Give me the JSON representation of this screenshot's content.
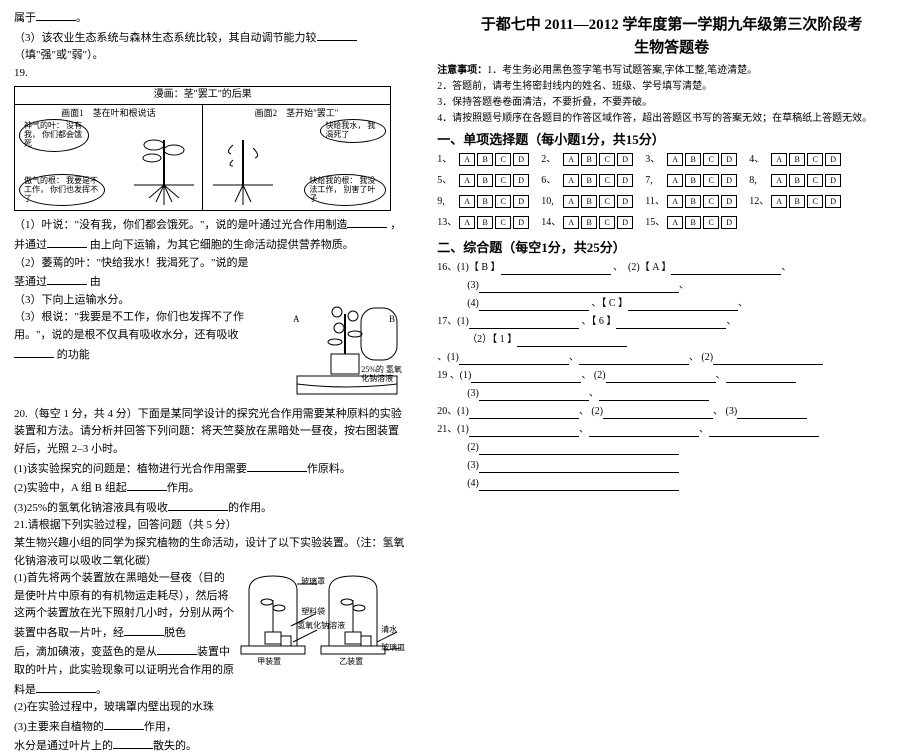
{
  "left": {
    "line_belong": "属于",
    "q3": "（3）该农业生态系统与森林生态系统比较，其自动调节能力较",
    "q3_hint": "（填\"强\"或\"弱\"）。",
    "q19_num": "19.",
    "comic_header": "漫画：茎\"罢工\"的后果",
    "panel1_title": "画面1　茎在叶和根说话",
    "panel2_title": "画面2　茎开始\"罢工\"",
    "bubble_leaf1": "神气的叶：\n没有我，\n你们都会饿死",
    "bubble_root1": "傲气的根：\n我要是不工作，\n你们也发挥不了",
    "bubble_leaf2": "快给我水，\n我渴死了",
    "bubble_root2": "快给我的根：\n我没法工作，\n别害了叶子",
    "p_leaf": "（1）叶说：\"没有我，你们都会饿死。\"，说的是叶通过光合作用制造",
    "p_leaf2": "，并通过",
    "p_leaf3": "由上向下运输，为其它细胞的生命活动提供营养物质。",
    "p_stem1": "（2）萎蔫的叶：\"快给我水！我渴死了。\"说的是",
    "p_stem2": "茎通过",
    "p_stem2b": "由",
    "p_stem3": "（3）下向上运输水分。",
    "p_root1": "（3）根说：\"我要是不工作，你们也发挥不了作用。\"，说的是根不仅具有吸收水分，还有吸收",
    "p_root2": "的功能",
    "q20": "20.（每空 1 分，共 4 分）下面是某同学设计的探究光合作用需要某种原料的实验装置和方法。请分析并回答下列问题：将天竺葵放在黑暗处一昼夜，按右图装置好后，光照 2–3 小时。",
    "flower_label": "25%的\n氢氧化钠溶液",
    "q20_1a": "(1)该实验探究的问题是：植物进行光合作用需要",
    "q20_1b": "作原料。",
    "q20_2": "(2)实验中，A 组 B 组起",
    "q20_2b": "作用。",
    "q20_3": "(3)25%的氢氧化钠溶液具有吸收",
    "q20_3b": "的作用。",
    "q21_head": "21.请根据下列实验过程，回答问题（共 5 分）",
    "q21_body1": "某生物兴趣小组的同学为探究植物的生命活动，设计了以下实验装置。（注：氢氧化钠溶液可以吸收二氧化碳）",
    "q21_body2": "(1)首先将两个装置放在黑暗处一昼夜（目的是使叶片中原有的有机物运走耗尽），然后将这两个装置放在光下照射几小时，分别从两个装置中各取一片叶，经",
    "q21_body2b": "脱色",
    "q21_body3": "后，滴加碘液，变蓝色的是从",
    "q21_body3b": "装置中取的叶片，此实验现象可以证明光合作用的原料是",
    "q21_body4": "(2)在实验过程中，玻璃罩内壁出现的水珠",
    "q21_body5": "(3)主要来自植物的",
    "q21_body5b": "作用，",
    "q21_body6": "水分是通过叶片上的",
    "q21_body6b": "散失的。",
    "jar_label_top": "玻璃罩",
    "jar_label_bag": "塑料袋",
    "jar_label_naoh": "氢氧化钠溶液",
    "jar_label_a": "甲装置",
    "jar_label_b": "乙装置",
    "jar_label_water": "清水",
    "jar_label_dish": "玻璃皿"
  },
  "right": {
    "title1": "于都七中 2011—2012 学年度第一学期九年级第三次阶段考",
    "title2": "生物答题卷",
    "notice_head": "注意事项：",
    "notice1": "1．考生务必用黑色签字笔书写试题答案,字体工整,笔迹清楚。",
    "notice2": "2．答题前，请考生将密封线内的姓名、班级、学号填写清楚。",
    "notice3": "3．保持答题卷卷面清洁，不要折叠，不要弄破。",
    "notice4": "4．请按照题号顺序在各题目的作答区域作答，超出答题区书写的答案无效；在草稿纸上答题无效。",
    "section1": "一、单项选择题（每小题1分，共15分）",
    "options": [
      "A",
      "B",
      "C",
      "D"
    ],
    "mc_numbers": [
      "1、",
      "2、",
      "3、",
      "4、",
      "5、",
      "6、",
      "7,",
      "8,",
      "9,",
      "10,",
      "11、",
      "12、",
      "13、",
      "14、",
      "15、"
    ],
    "section2": "二、综合题（每空1分，共25分）",
    "r16a": "16、(1)【 B 】",
    "r16b": "、　(2)【 A 】",
    "r16_3": "(3)",
    "r16_4": "(4)",
    "r16_5": "、【 C 】",
    "r17_1": "17、(1)",
    "r17_1b": "、【 6 】",
    "r17_2": "（2）【 1 】",
    "r18_1": "、(1)",
    "r18_2": "(2)",
    "r19_1": "19 、(1)",
    "r19_2": "(2)",
    "r19_3": "(3)",
    "r20_1": "20、(1)",
    "r20_2": "(2)",
    "r20_3": "(3)",
    "r21_1": "21、(1)",
    "r21_2": "(2)",
    "r21_3": "(3)",
    "r21_4": "(4)"
  }
}
